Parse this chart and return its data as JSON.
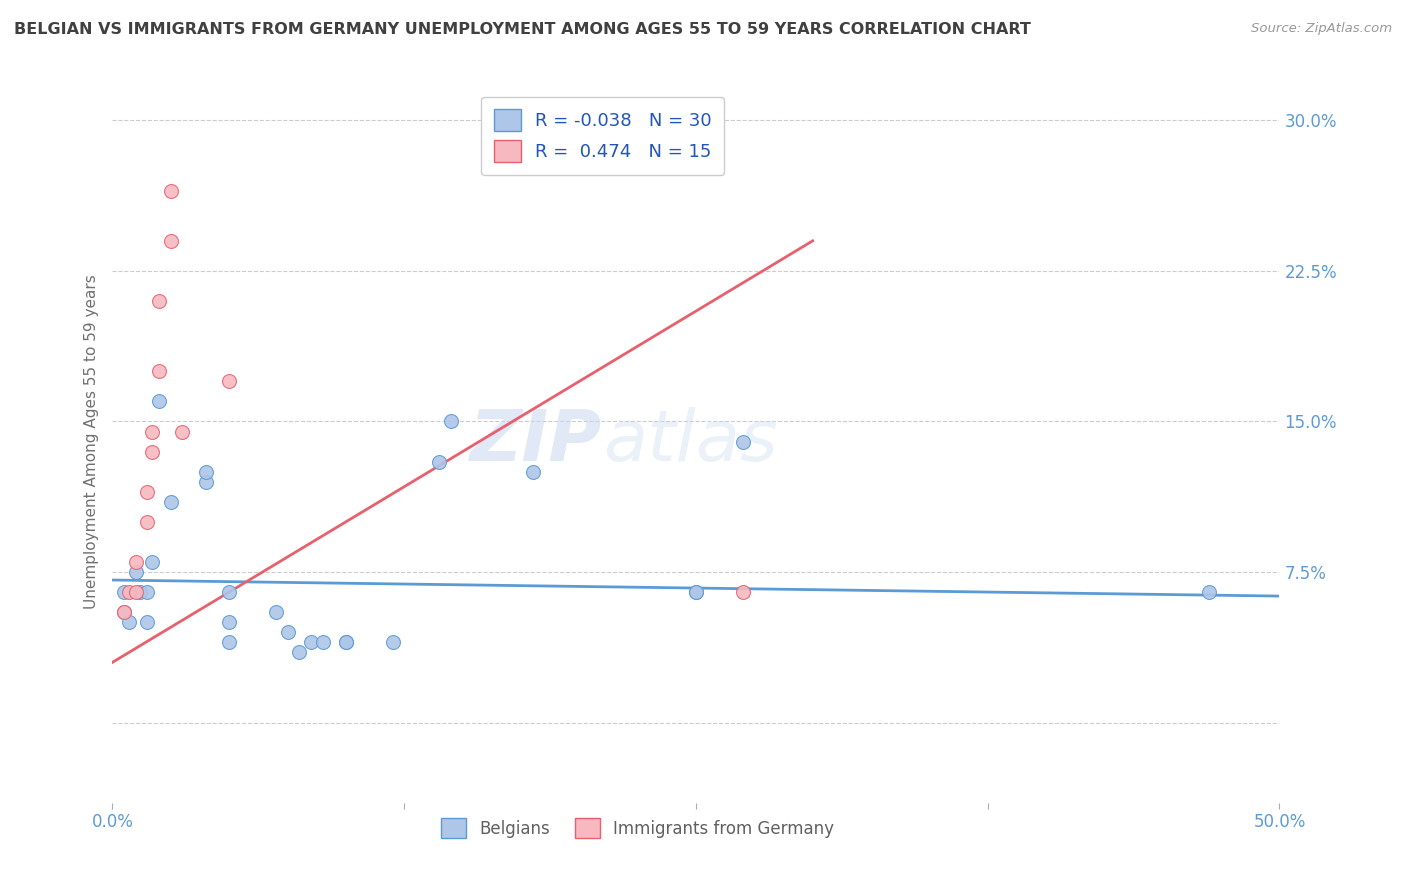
{
  "title": "BELGIAN VS IMMIGRANTS FROM GERMANY UNEMPLOYMENT AMONG AGES 55 TO 59 YEARS CORRELATION CHART",
  "source": "Source: ZipAtlas.com",
  "ylabel": "Unemployment Among Ages 55 to 59 years",
  "xlim": [
    0.0,
    0.5
  ],
  "ylim": [
    -0.04,
    0.32
  ],
  "ytick_vals": [
    0.3,
    0.225,
    0.15,
    0.075,
    0.0
  ],
  "ytick_labels": [
    "30.0%",
    "22.5%",
    "15.0%",
    "7.5%",
    ""
  ],
  "xtick_vals": [
    0.0,
    0.125,
    0.25,
    0.375,
    0.5
  ],
  "xtick_labels": [
    "0.0%",
    "",
    "",
    "",
    "50.0%"
  ],
  "watermark_zip": "ZIP",
  "watermark_atlas": "atlas",
  "belgians_R": "-0.038",
  "belgians_N": "30",
  "immigrants_R": "0.474",
  "immigrants_N": "15",
  "belgians_color": "#aec6e8",
  "immigrants_color": "#f7b8c0",
  "belgians_edge_color": "#5b9bd5",
  "immigrants_edge_color": "#e8606e",
  "belgians_line_color": "#5b9bd5",
  "immigrants_line_color": "#e8606e",
  "belgians_scatter": [
    [
      0.005,
      0.065
    ],
    [
      0.005,
      0.055
    ],
    [
      0.007,
      0.05
    ],
    [
      0.01,
      0.075
    ],
    [
      0.012,
      0.065
    ],
    [
      0.015,
      0.065
    ],
    [
      0.015,
      0.05
    ],
    [
      0.017,
      0.08
    ],
    [
      0.02,
      0.16
    ],
    [
      0.025,
      0.11
    ],
    [
      0.04,
      0.12
    ],
    [
      0.04,
      0.125
    ],
    [
      0.05,
      0.065
    ],
    [
      0.05,
      0.05
    ],
    [
      0.05,
      0.04
    ],
    [
      0.07,
      0.055
    ],
    [
      0.075,
      0.045
    ],
    [
      0.08,
      0.035
    ],
    [
      0.085,
      0.04
    ],
    [
      0.09,
      0.04
    ],
    [
      0.1,
      0.04
    ],
    [
      0.1,
      0.04
    ],
    [
      0.12,
      0.04
    ],
    [
      0.14,
      0.13
    ],
    [
      0.145,
      0.15
    ],
    [
      0.18,
      0.125
    ],
    [
      0.25,
      0.065
    ],
    [
      0.25,
      0.065
    ],
    [
      0.27,
      0.14
    ],
    [
      0.47,
      0.065
    ]
  ],
  "immigrants_scatter": [
    [
      0.005,
      0.055
    ],
    [
      0.007,
      0.065
    ],
    [
      0.01,
      0.065
    ],
    [
      0.01,
      0.08
    ],
    [
      0.015,
      0.1
    ],
    [
      0.015,
      0.115
    ],
    [
      0.017,
      0.135
    ],
    [
      0.017,
      0.145
    ],
    [
      0.02,
      0.175
    ],
    [
      0.02,
      0.21
    ],
    [
      0.025,
      0.265
    ],
    [
      0.025,
      0.24
    ],
    [
      0.03,
      0.145
    ],
    [
      0.05,
      0.17
    ],
    [
      0.27,
      0.065
    ]
  ],
  "belgians_trendline": [
    [
      0.0,
      0.071
    ],
    [
      0.5,
      0.063
    ]
  ],
  "immigrants_trendline": [
    [
      0.0,
      0.03
    ],
    [
      0.3,
      0.24
    ]
  ],
  "legend_labels": [
    "Belgians",
    "Immigrants from Germany"
  ],
  "background_color": "#ffffff",
  "grid_color": "#cccccc",
  "title_color": "#404040",
  "axis_label_color": "#707070",
  "tick_color": "#5b9bd5",
  "scatter_size": 100
}
